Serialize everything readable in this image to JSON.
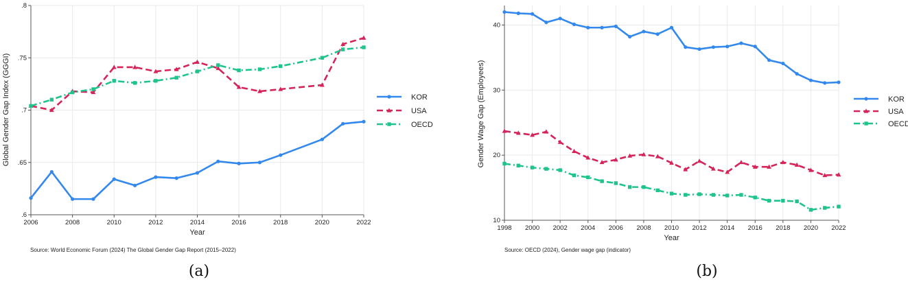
{
  "colors": {
    "KOR": "#3388ee",
    "USA": "#d6245a",
    "OECD": "#1fc48c",
    "grid": "#e9e9e9",
    "axis": "#555555"
  },
  "chart_data": [
    {
      "type": "line",
      "caption": "(a)",
      "xlabel": "Year",
      "ylabel": "Global Gender Gap Index (GGGI)",
      "source": "Source: World Economic Forum (2024) The Global Gender Gap Report (2015–2022)",
      "xlim": [
        2006,
        2022
      ],
      "ylim": [
        0.6,
        0.8
      ],
      "xticks": [
        2006,
        2008,
        2010,
        2012,
        2014,
        2016,
        2018,
        2020,
        2022
      ],
      "yticks": [
        0.6,
        0.65,
        0.7,
        0.75,
        0.8
      ],
      "ytick_labels": [
        ".6",
        ".65",
        ".7",
        ".75",
        ".8"
      ],
      "series": [
        {
          "name": "KOR",
          "x": [
            2006,
            2007,
            2008,
            2009,
            2010,
            2011,
            2012,
            2013,
            2014,
            2015,
            2016,
            2017,
            2018,
            2020,
            2021,
            2022
          ],
          "values": [
            0.616,
            0.641,
            0.615,
            0.615,
            0.634,
            0.628,
            0.636,
            0.635,
            0.64,
            0.651,
            0.649,
            0.65,
            0.657,
            0.672,
            0.687,
            0.689
          ]
        },
        {
          "name": "USA",
          "x": [
            2006,
            2007,
            2008,
            2009,
            2010,
            2011,
            2012,
            2013,
            2014,
            2015,
            2016,
            2017,
            2018,
            2020,
            2021,
            2022
          ],
          "values": [
            0.704,
            0.7,
            0.718,
            0.717,
            0.741,
            0.741,
            0.737,
            0.739,
            0.746,
            0.74,
            0.722,
            0.718,
            0.72,
            0.724,
            0.763,
            0.769
          ]
        },
        {
          "name": "OECD",
          "x": [
            2006,
            2007,
            2008,
            2009,
            2010,
            2011,
            2012,
            2013,
            2014,
            2015,
            2016,
            2017,
            2018,
            2020,
            2021,
            2022
          ],
          "values": [
            0.704,
            0.71,
            0.717,
            0.72,
            0.728,
            0.726,
            0.728,
            0.731,
            0.737,
            0.743,
            0.738,
            0.739,
            0.742,
            0.75,
            0.758,
            0.76
          ]
        }
      ]
    },
    {
      "type": "line",
      "caption": "(b)",
      "xlabel": "Year",
      "ylabel": "Gender Wage Gap (Employees)",
      "source": "Source: OECD (2024), Gender wage gap (indicator)",
      "xlim": [
        1998,
        2022
      ],
      "ylim": [
        10,
        43
      ],
      "xticks": [
        1998,
        2000,
        2002,
        2004,
        2006,
        2008,
        2010,
        2012,
        2014,
        2016,
        2018,
        2020,
        2022
      ],
      "yticks": [
        10,
        20,
        30,
        40
      ],
      "ytick_labels": [
        "10",
        "20",
        "30",
        "40"
      ],
      "series": [
        {
          "name": "KOR",
          "x": [
            1998,
            1999,
            2000,
            2001,
            2002,
            2003,
            2004,
            2005,
            2006,
            2007,
            2008,
            2009,
            2010,
            2011,
            2012,
            2013,
            2014,
            2015,
            2016,
            2017,
            2018,
            2019,
            2020,
            2021,
            2022
          ],
          "values": [
            42.0,
            41.8,
            41.7,
            40.4,
            41.0,
            40.1,
            39.6,
            39.6,
            39.8,
            38.2,
            39.0,
            38.6,
            39.6,
            36.6,
            36.3,
            36.6,
            36.7,
            37.2,
            36.7,
            34.6,
            34.1,
            32.5,
            31.5,
            31.1,
            31.2
          ]
        },
        {
          "name": "USA",
          "x": [
            1998,
            1999,
            2000,
            2001,
            2002,
            2003,
            2004,
            2005,
            2006,
            2007,
            2008,
            2009,
            2010,
            2011,
            2012,
            2013,
            2014,
            2015,
            2016,
            2017,
            2018,
            2019,
            2020,
            2021,
            2022
          ],
          "values": [
            23.7,
            23.4,
            23.1,
            23.6,
            22.0,
            20.6,
            19.6,
            18.9,
            19.3,
            19.9,
            20.1,
            19.8,
            18.8,
            17.8,
            19.1,
            17.9,
            17.4,
            18.9,
            18.2,
            18.2,
            18.9,
            18.5,
            17.7,
            16.9,
            17.0
          ]
        },
        {
          "name": "OECD",
          "x": [
            1998,
            1999,
            2000,
            2001,
            2002,
            2003,
            2004,
            2005,
            2006,
            2007,
            2008,
            2009,
            2010,
            2011,
            2012,
            2013,
            2014,
            2015,
            2016,
            2017,
            2018,
            2019,
            2020,
            2021,
            2022
          ],
          "values": [
            18.7,
            18.4,
            18.1,
            17.9,
            17.7,
            16.9,
            16.6,
            16.0,
            15.7,
            15.1,
            15.1,
            14.6,
            14.1,
            13.9,
            14.0,
            13.9,
            13.8,
            13.9,
            13.5,
            13.0,
            13.0,
            12.9,
            11.6,
            11.9,
            12.1
          ]
        }
      ]
    }
  ]
}
